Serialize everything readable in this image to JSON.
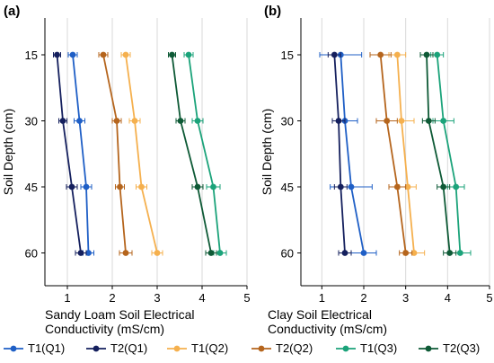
{
  "chart_data": [
    {
      "type": "line",
      "panel_label": "(a)",
      "xlabel_lines": [
        "Sandy Loam Soil Electrical",
        "Conductivity (mS/cm)"
      ],
      "ylabel": "Soil Depth (cm)",
      "xlim": [
        0.5,
        5
      ],
      "x_ticks": [
        1,
        2,
        3,
        4,
        5
      ],
      "y_categories": [
        15,
        30,
        45,
        60
      ],
      "grid": true,
      "series": [
        {
          "name": "T1(Q1)",
          "color": "#1f5fc6",
          "x": [
            1.12,
            1.27,
            1.42,
            1.47
          ],
          "err": [
            0.1,
            0.12,
            0.12,
            0.12
          ]
        },
        {
          "name": "T2(Q1)",
          "color": "#15205e",
          "x": [
            0.77,
            0.9,
            1.1,
            1.3
          ],
          "err": [
            0.08,
            0.09,
            0.12,
            0.12
          ]
        },
        {
          "name": "T1(Q2)",
          "color": "#f5b04e",
          "x": [
            2.3,
            2.5,
            2.65,
            3.0
          ],
          "err": [
            0.1,
            0.12,
            0.12,
            0.12
          ]
        },
        {
          "name": "T2(Q2)",
          "color": "#b5651d",
          "x": [
            1.8,
            2.1,
            2.17,
            2.3
          ],
          "err": [
            0.1,
            0.1,
            0.1,
            0.14
          ]
        },
        {
          "name": "T1(Q3)",
          "color": "#1ba37a",
          "x": [
            3.7,
            3.9,
            4.25,
            4.4
          ],
          "err": [
            0.1,
            0.12,
            0.15,
            0.14
          ]
        },
        {
          "name": "T2(Q3)",
          "color": "#0e5a36",
          "x": [
            3.33,
            3.52,
            3.9,
            4.2
          ],
          "err": [
            0.08,
            0.1,
            0.12,
            0.12
          ]
        }
      ]
    },
    {
      "type": "line",
      "panel_label": "(b)",
      "xlabel_lines": [
        "Clay Soil Electrical",
        "Conductivity (mS/cm)"
      ],
      "ylabel": "Soil Depth (cm)",
      "xlim": [
        0.5,
        5
      ],
      "x_ticks": [
        1,
        2,
        3,
        4,
        5
      ],
      "y_categories": [
        15,
        30,
        45,
        60
      ],
      "grid": true,
      "series": [
        {
          "name": "T1(Q1)",
          "color": "#1f5fc6",
          "x": [
            1.45,
            1.55,
            1.7,
            2.0
          ],
          "err": [
            0.5,
            0.3,
            0.5,
            0.3
          ]
        },
        {
          "name": "T2(Q1)",
          "color": "#15205e",
          "x": [
            1.3,
            1.4,
            1.45,
            1.55
          ],
          "err": [
            0.15,
            0.15,
            0.15,
            0.15
          ]
        },
        {
          "name": "T1(Q2)",
          "color": "#f5b04e",
          "x": [
            2.8,
            2.9,
            3.05,
            3.2
          ],
          "err": [
            0.2,
            0.3,
            0.2,
            0.25
          ]
        },
        {
          "name": "T2(Q2)",
          "color": "#b5651d",
          "x": [
            2.4,
            2.55,
            2.8,
            3.0
          ],
          "err": [
            0.25,
            0.25,
            0.2,
            0.15
          ]
        },
        {
          "name": "T1(Q3)",
          "color": "#1ba37a",
          "x": [
            3.75,
            3.9,
            4.2,
            4.3
          ],
          "err": [
            0.15,
            0.25,
            0.2,
            0.25
          ]
        },
        {
          "name": "T2(Q3)",
          "color": "#0e5a36",
          "x": [
            3.5,
            3.55,
            3.9,
            4.05
          ],
          "err": [
            0.15,
            0.15,
            0.15,
            0.15
          ]
        }
      ]
    }
  ],
  "legend": {
    "placement": "bottom",
    "entries": [
      {
        "label": "T1(Q1)",
        "color": "#1f5fc6"
      },
      {
        "label": "T2(Q1)",
        "color": "#15205e"
      },
      {
        "label": "T1(Q2)",
        "color": "#f5b04e"
      },
      {
        "label": "T2(Q2)",
        "color": "#b5651d"
      },
      {
        "label": "T1(Q3)",
        "color": "#1ba37a"
      },
      {
        "label": "T2(Q3)",
        "color": "#0e5a36"
      }
    ]
  }
}
